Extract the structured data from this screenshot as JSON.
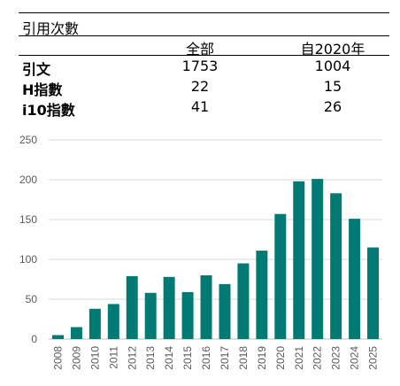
{
  "citations_table": {
    "title": "引用次數",
    "col_all": "全部",
    "col_since": "自2020年",
    "rows": [
      {
        "label": "引文",
        "all": "1753",
        "since": "1004"
      },
      {
        "label": "H指數",
        "all": "22",
        "since": "15"
      },
      {
        "label": "i10指數",
        "all": "41",
        "since": "26"
      }
    ]
  },
  "chart_data": {
    "type": "bar",
    "categories": [
      "2008",
      "2009",
      "2010",
      "2011",
      "2012",
      "2013",
      "2014",
      "2015",
      "2016",
      "2017",
      "2018",
      "2019",
      "2020",
      "2021",
      "2022",
      "2023",
      "2024",
      "2025"
    ],
    "values": [
      5,
      15,
      38,
      44,
      79,
      58,
      78,
      59,
      80,
      69,
      95,
      111,
      157,
      198,
      201,
      183,
      151,
      115
    ],
    "ylim": [
      0,
      250
    ],
    "yticks": [
      0,
      50,
      100,
      150,
      200,
      250
    ],
    "grid": true,
    "bar_color": "#007A73",
    "grid_color": "#d9d9d9"
  }
}
